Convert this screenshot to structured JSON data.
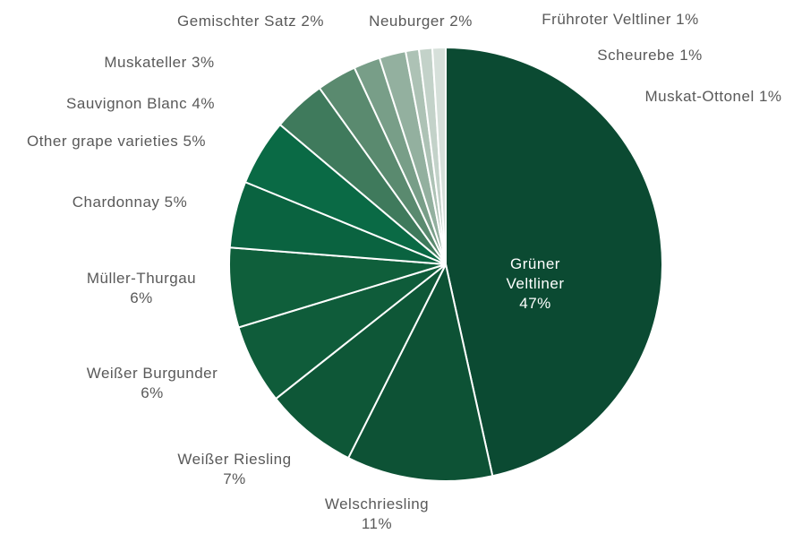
{
  "chart_data": {
    "type": "pie",
    "categories": [
      "Grüner Veltliner",
      "Welschriesling",
      "Weißer Riesling",
      "Weißer Burgunder",
      "Müller-Thurgau",
      "Chardonnay",
      "Other grape varieties",
      "Sauvignon Blanc",
      "Muskateller",
      "Gemischter Satz",
      "Neuburger",
      "Frühroter Veltliner",
      "Scheurebe",
      "Muskat-Ottonel"
    ],
    "values": [
      47,
      11,
      7,
      6,
      6,
      5,
      5,
      4,
      3,
      2,
      2,
      1,
      1,
      1
    ],
    "value_labels": [
      "47%",
      "11%",
      "7%",
      "6%",
      "6%",
      "5%",
      "5%",
      "4%",
      "3%",
      "2%",
      "2%",
      "1%",
      "1%",
      "1%"
    ],
    "colors": [
      "#0b4a32",
      "#0d5235",
      "#0e5737",
      "#0f5c3a",
      "#0f5f3b",
      "#0a6340",
      "#0a6a45",
      "#3f7a5c",
      "#5a8a6f",
      "#789e88",
      "#93b09f",
      "#adc2b5",
      "#c3d2c9",
      "#d6e0da"
    ]
  }
}
